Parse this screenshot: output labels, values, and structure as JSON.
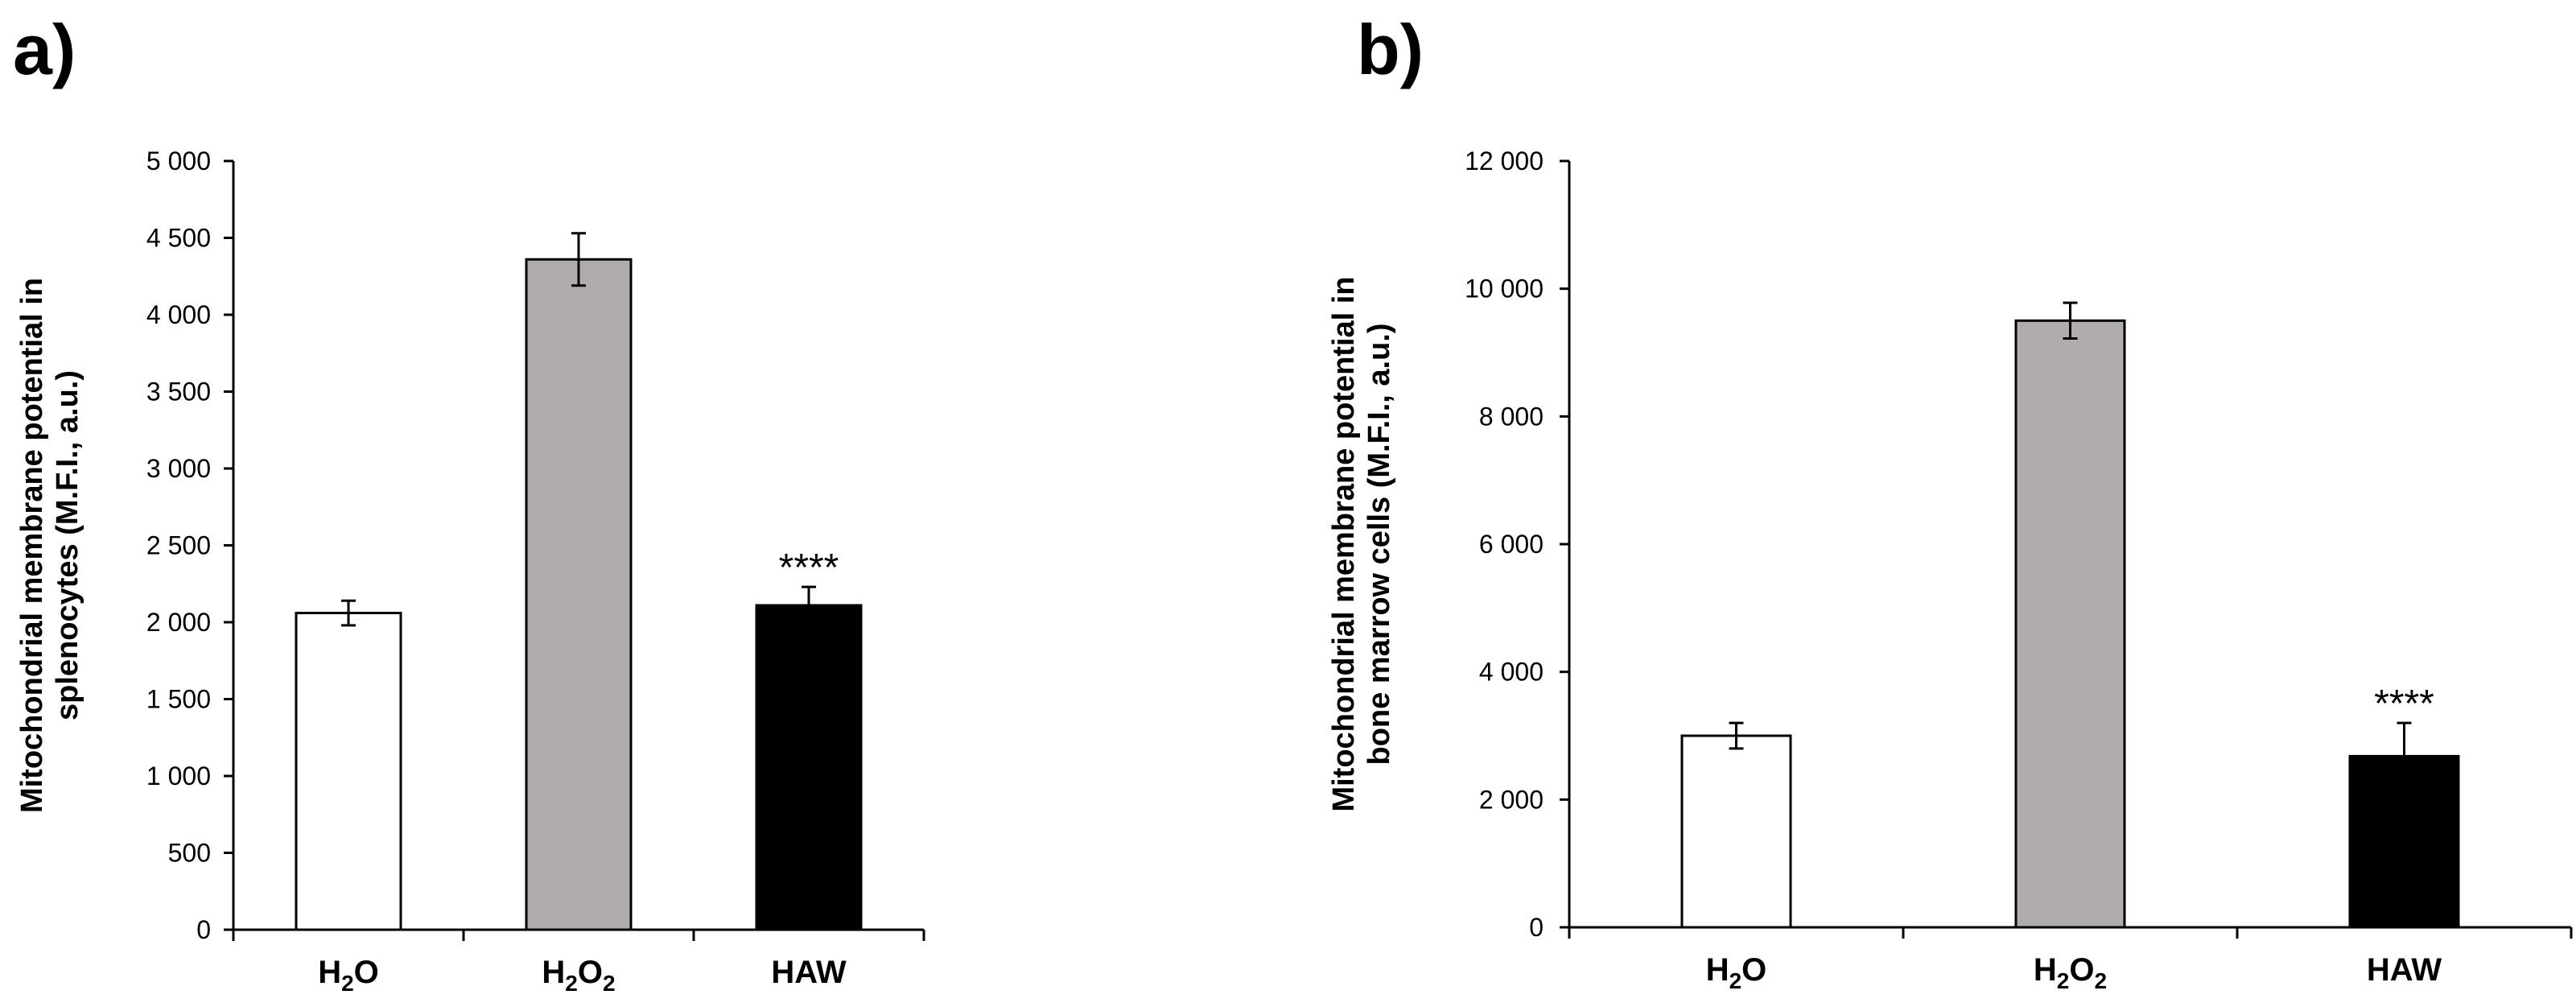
{
  "chart_data": [
    {
      "type": "bar",
      "panel_label": "a)",
      "categories": [
        "H2O",
        "H2O2",
        "HAW"
      ],
      "category_labels": [
        {
          "main": "H",
          "sub": "2",
          "rest": "O",
          "sub2": "",
          "rest2": ""
        },
        {
          "main": "H",
          "sub": "2",
          "rest": "O",
          "sub2": "2",
          "rest2": ""
        },
        {
          "main": "HAW",
          "sub": "",
          "rest": "",
          "sub2": "",
          "rest2": ""
        }
      ],
      "values": [
        2060,
        4360,
        2110
      ],
      "errors": [
        80,
        170,
        120
      ],
      "bar_colors": [
        "#ffffff",
        "#b0acab",
        "#000000"
      ],
      "significance": [
        "",
        "",
        "****"
      ],
      "ylabel_line1": "Mitochondrial membrane potential in",
      "ylabel_line2": "splenocytes (M.F.I., a.u.)",
      "ylim": [
        0,
        5000
      ],
      "ytick_step": 500,
      "yticks": [
        "0",
        "500",
        "1 000",
        "1 500",
        "2 000",
        "2 500",
        "3 000",
        "3 500",
        "4 000",
        "4 500",
        "5 000"
      ]
    },
    {
      "type": "bar",
      "panel_label": "b)",
      "categories": [
        "H2O",
        "H2O2",
        "HAW"
      ],
      "category_labels": [
        {
          "main": "H",
          "sub": "2",
          "rest": "O",
          "sub2": "",
          "rest2": ""
        },
        {
          "main": "H",
          "sub": "2",
          "rest": "O",
          "sub2": "2",
          "rest2": ""
        },
        {
          "main": "HAW",
          "sub": "",
          "rest": "",
          "sub2": "",
          "rest2": ""
        }
      ],
      "values": [
        3000,
        9500,
        2680
      ],
      "errors": [
        200,
        280,
        520
      ],
      "bar_colors": [
        "#ffffff",
        "#b0acab",
        "#000000"
      ],
      "significance": [
        "",
        "",
        "****"
      ],
      "ylabel_line1": "Mitochondrial membrane potential in",
      "ylabel_line2": "bone marrow cells (M.F.I., a.u.)",
      "ylim": [
        0,
        12000
      ],
      "ytick_step": 2000,
      "yticks": [
        "0",
        "2 000",
        "4 000",
        "6 000",
        "8 000",
        "10 000",
        "12 000"
      ]
    }
  ]
}
